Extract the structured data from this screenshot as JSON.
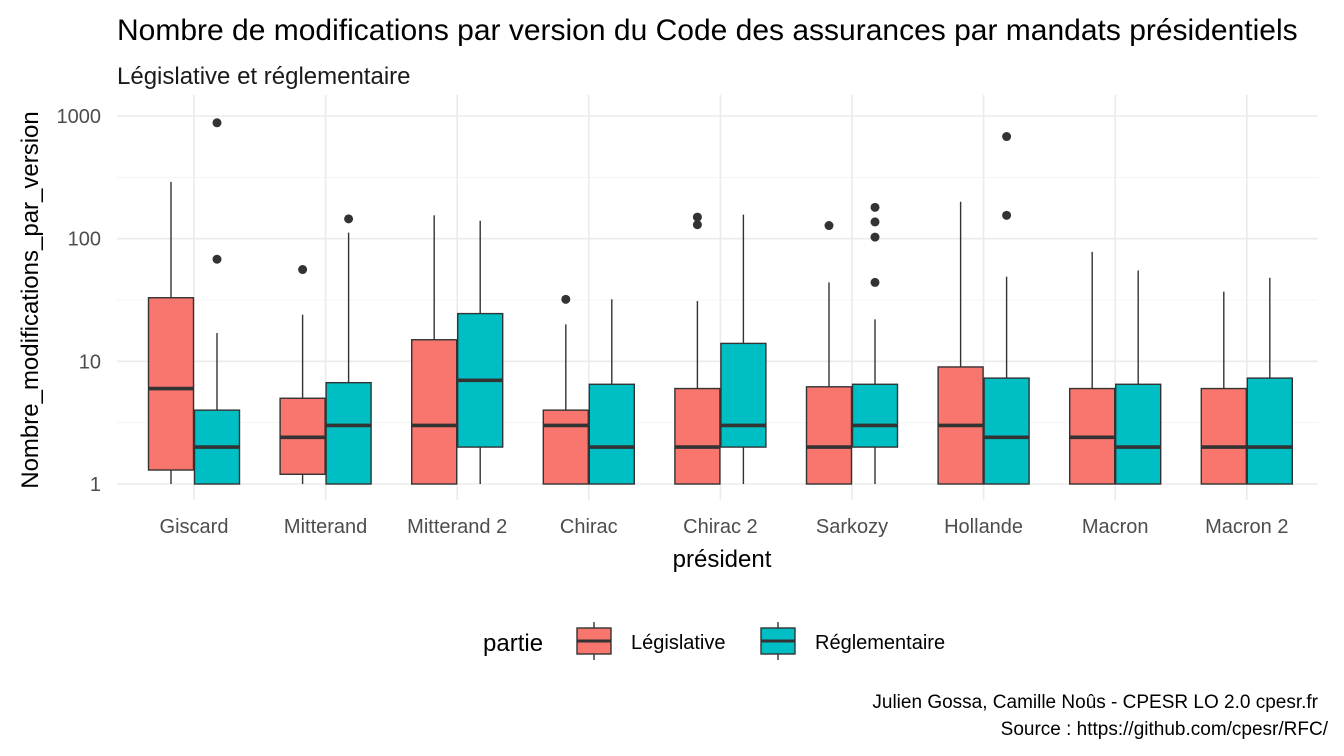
{
  "chart_data": {
    "type": "boxplot",
    "title": "Nombre de modifications par version du Code des assurances par mandats présidentiels",
    "subtitle": "Législative et réglementaire",
    "xlabel": "président",
    "ylabel": "Nombre_modifications_par_version",
    "yscale": "log10",
    "ylim": [
      1,
      1000
    ],
    "yticks": [
      {
        "value": 1,
        "label": "1"
      },
      {
        "value": 10,
        "label": "10"
      },
      {
        "value": 100,
        "label": "100"
      },
      {
        "value": 1000,
        "label": "1000"
      }
    ],
    "grid": true,
    "categories": [
      "Giscard",
      "Mitterand",
      "Mitterand 2",
      "Chirac",
      "Chirac 2",
      "Sarkozy",
      "Hollande",
      "Macron",
      "Macron 2"
    ],
    "legend": {
      "title": "partie",
      "position": "bottom",
      "entries": [
        {
          "name": "Législative",
          "color": "#F8766D"
        },
        {
          "name": "Réglementaire",
          "color": "#00BFC4"
        }
      ]
    },
    "series": [
      {
        "name": "Législative",
        "color": "#F8766D",
        "boxes": [
          {
            "category": "Giscard",
            "min": 1,
            "q1": 1.3,
            "median": 6,
            "q3": 33,
            "max": 290,
            "outliers": []
          },
          {
            "category": "Mitterand",
            "min": 1,
            "q1": 1.2,
            "median": 2.4,
            "q3": 5,
            "max": 24,
            "outliers": [
              56
            ]
          },
          {
            "category": "Mitterand 2",
            "min": 1,
            "q1": 1,
            "median": 3,
            "q3": 15,
            "max": 155,
            "outliers": []
          },
          {
            "category": "Chirac",
            "min": 1,
            "q1": 1,
            "median": 3,
            "q3": 4,
            "max": 20,
            "outliers": [
              32
            ]
          },
          {
            "category": "Chirac 2",
            "min": 1,
            "q1": 1,
            "median": 2,
            "q3": 6,
            "max": 31,
            "outliers": [
              130,
              150
            ]
          },
          {
            "category": "Sarkozy",
            "min": 1,
            "q1": 1,
            "median": 2,
            "q3": 6.2,
            "max": 44,
            "outliers": [
              128
            ]
          },
          {
            "category": "Hollande",
            "min": 1,
            "q1": 1,
            "median": 3,
            "q3": 9,
            "max": 200,
            "outliers": []
          },
          {
            "category": "Macron",
            "min": 1,
            "q1": 1,
            "median": 2.4,
            "q3": 6,
            "max": 78,
            "outliers": []
          },
          {
            "category": "Macron 2",
            "min": 1,
            "q1": 1,
            "median": 2,
            "q3": 6,
            "max": 37,
            "outliers": []
          }
        ]
      },
      {
        "name": "Réglementaire",
        "color": "#00BFC4",
        "boxes": [
          {
            "category": "Giscard",
            "min": 1,
            "q1": 1,
            "median": 2,
            "q3": 4,
            "max": 17,
            "outliers": [
              68,
              880
            ]
          },
          {
            "category": "Mitterand",
            "min": 1,
            "q1": 1,
            "median": 3,
            "q3": 6.7,
            "max": 112,
            "outliers": [
              145
            ]
          },
          {
            "category": "Mitterand 2",
            "min": 1,
            "q1": 2,
            "median": 7,
            "q3": 24.5,
            "max": 140,
            "outliers": []
          },
          {
            "category": "Chirac",
            "min": 1,
            "q1": 1,
            "median": 2,
            "q3": 6.5,
            "max": 32,
            "outliers": []
          },
          {
            "category": "Chirac 2",
            "min": 1,
            "q1": 2,
            "median": 3,
            "q3": 14,
            "max": 157,
            "outliers": []
          },
          {
            "category": "Sarkozy",
            "min": 1,
            "q1": 2,
            "median": 3,
            "q3": 6.5,
            "max": 22,
            "outliers": [
              44,
              103,
              137,
              180
            ]
          },
          {
            "category": "Hollande",
            "min": 1,
            "q1": 1,
            "median": 2.4,
            "q3": 7.3,
            "max": 49,
            "outliers": [
              155,
              680
            ]
          },
          {
            "category": "Macron",
            "min": 1,
            "q1": 1,
            "median": 2,
            "q3": 6.5,
            "max": 55,
            "outliers": []
          },
          {
            "category": "Macron 2",
            "min": 1,
            "q1": 1,
            "median": 2,
            "q3": 7.3,
            "max": 48,
            "outliers": []
          }
        ]
      }
    ]
  },
  "caption": {
    "line1": "Julien Gossa, Camille Noûs - CPESR LO 2.0 cpesr.fr",
    "line2": "Source : https://github.com/cpesr/RFC/"
  }
}
